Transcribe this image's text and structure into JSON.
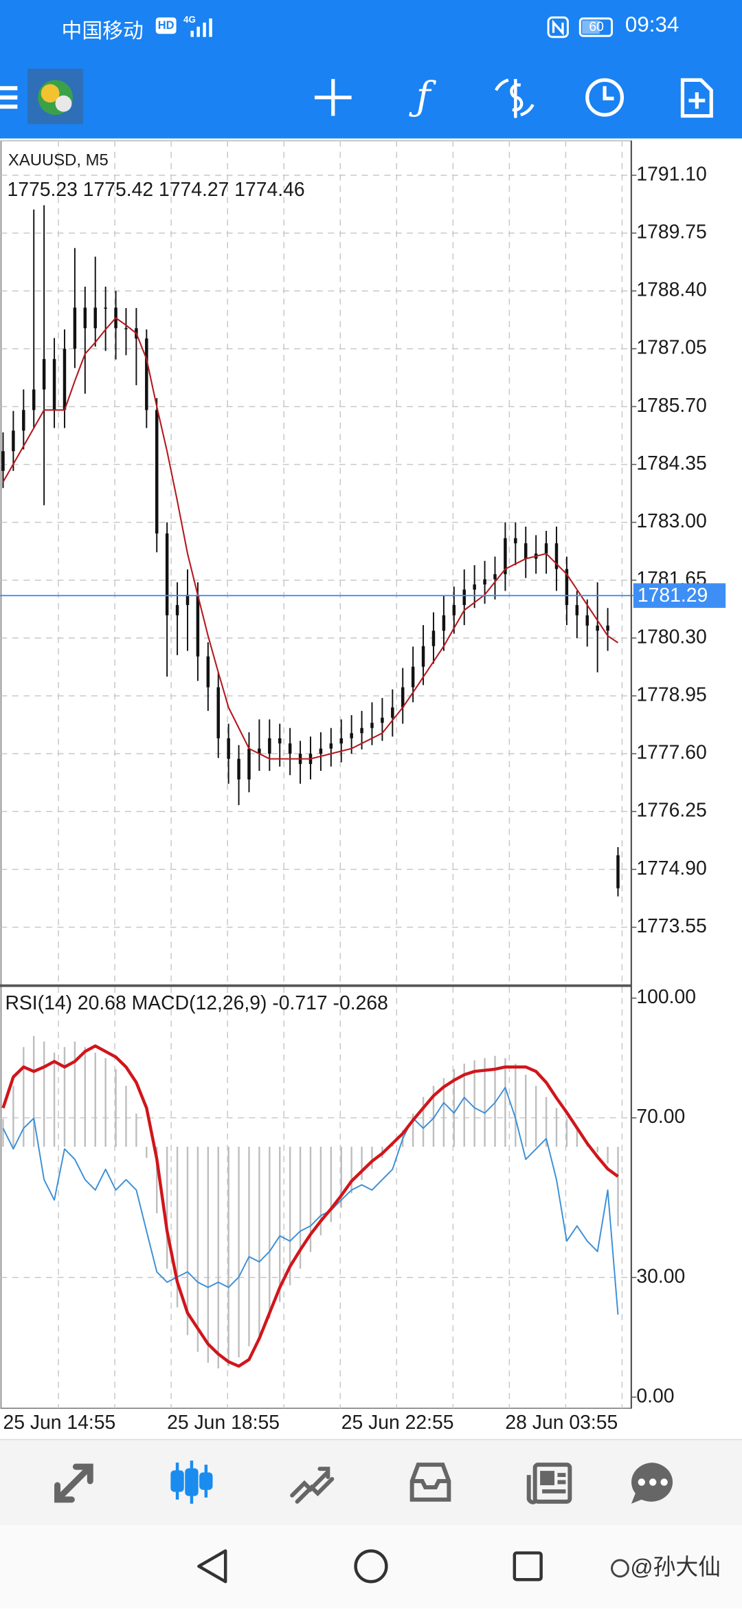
{
  "status_bar": {
    "carrier": "中国移动",
    "hd": "HD",
    "network": "4G",
    "battery": "60",
    "time": "09:34"
  },
  "chart_data": [
    {
      "type": "candlestick",
      "title": "XAUUSD, M5",
      "subtitle": "1775.23 1775.42 1774.27 1774.46",
      "categories": [
        "25 Jun 14:55",
        null,
        null,
        null,
        null,
        null,
        null,
        null,
        null,
        null,
        null,
        null,
        null,
        null,
        null,
        null,
        "25 Jun 18:55",
        null,
        null,
        null,
        null,
        null,
        null,
        null,
        null,
        null,
        null,
        null,
        null,
        null,
        null,
        null,
        null,
        "25 Jun 22:55",
        null,
        null,
        null,
        null,
        null,
        null,
        null,
        null,
        null,
        null,
        null,
        null,
        null,
        null,
        null,
        "28 Jun 03:55",
        null,
        null,
        null,
        null,
        null,
        null,
        null,
        null,
        null,
        null,
        null
      ],
      "open": [
        1784.2,
        1784.66,
        1785.14,
        1785.62,
        1786.1,
        1786.81,
        1785.62,
        1787.05,
        1788.01,
        1787.53,
        1788.01,
        1788.01,
        1787.53,
        1787.53,
        1787.29,
        1785.62,
        1782.74,
        1780.83,
        1781.07,
        1781.31,
        1779.87,
        1779.15,
        1777.96,
        1777.48,
        1777.0,
        1777.72,
        1777.6,
        1777.96,
        1777.84,
        1777.6,
        1777.36,
        1777.6,
        1777.72,
        1777.84,
        1777.96,
        1778.08,
        1778.2,
        1778.32,
        1778.44,
        1778.68,
        1779.15,
        1779.63,
        1780.11,
        1780.47,
        1780.83,
        1781.07,
        1781.43,
        1781.55,
        1781.67,
        1781.79,
        1782.63,
        1782.51,
        1782.15,
        1782.27,
        1782.51,
        1781.91,
        1781.07,
        1780.83,
        1780.59,
        1780.47,
        1775.23
      ],
      "high": [
        1785.1,
        1785.6,
        1786.1,
        1790.3,
        1790.4,
        1787.3,
        1787.5,
        1789.4,
        1788.5,
        1789.2,
        1788.5,
        1788.4,
        1788.0,
        1788.0,
        1787.5,
        1785.9,
        1783.0,
        1781.6,
        1781.9,
        1781.6,
        1780.2,
        1779.5,
        1778.3,
        1777.8,
        1778.1,
        1778.4,
        1778.4,
        1778.3,
        1778.2,
        1777.9,
        1778.0,
        1778.1,
        1778.2,
        1778.4,
        1778.5,
        1778.6,
        1778.8,
        1778.9,
        1779.1,
        1779.6,
        1780.1,
        1780.6,
        1780.9,
        1781.3,
        1781.5,
        1781.9,
        1782.0,
        1782.1,
        1782.2,
        1783.0,
        1783.0,
        1782.9,
        1782.7,
        1782.8,
        1782.9,
        1782.2,
        1781.4,
        1781.2,
        1781.6,
        1781.0,
        1775.42
      ],
      "low": [
        1783.8,
        1784.2,
        1784.7,
        1785.2,
        1783.4,
        1785.2,
        1785.2,
        1786.6,
        1786.0,
        1787.1,
        1787.0,
        1786.8,
        1786.9,
        1786.2,
        1785.2,
        1782.3,
        1779.4,
        1779.9,
        1780.0,
        1779.3,
        1778.6,
        1777.5,
        1776.9,
        1776.4,
        1776.7,
        1777.2,
        1777.2,
        1777.3,
        1777.1,
        1776.9,
        1777.0,
        1777.2,
        1777.3,
        1777.4,
        1777.6,
        1777.7,
        1777.8,
        1777.9,
        1778.0,
        1778.3,
        1778.8,
        1779.2,
        1779.7,
        1780.0,
        1780.4,
        1780.6,
        1781.0,
        1781.1,
        1781.2,
        1781.4,
        1782.0,
        1781.7,
        1781.8,
        1781.8,
        1781.4,
        1780.6,
        1780.3,
        1780.1,
        1779.5,
        1780.0,
        1774.27
      ],
      "close": [
        1784.66,
        1785.14,
        1785.62,
        1786.1,
        1786.81,
        1785.62,
        1787.05,
        1788.01,
        1787.53,
        1788.01,
        1788.01,
        1787.53,
        1787.53,
        1787.29,
        1785.62,
        1782.74,
        1780.83,
        1781.07,
        1781.31,
        1779.87,
        1779.15,
        1777.96,
        1777.48,
        1777.0,
        1777.72,
        1777.6,
        1777.96,
        1777.84,
        1777.6,
        1777.36,
        1777.6,
        1777.72,
        1777.84,
        1777.96,
        1778.08,
        1778.2,
        1778.32,
        1778.44,
        1778.68,
        1779.15,
        1779.63,
        1780.11,
        1780.47,
        1780.83,
        1781.07,
        1781.43,
        1781.55,
        1781.67,
        1781.79,
        1782.63,
        1782.51,
        1782.15,
        1782.27,
        1782.51,
        1781.91,
        1781.07,
        1780.83,
        1780.59,
        1780.47,
        1780.59,
        1774.46
      ],
      "candle_color": "#111111",
      "series": [
        {
          "color": "#b3191f",
          "values": [
            1783.94,
            1784.36,
            1784.78,
            1785.2,
            1785.62,
            1785.62,
            1785.62,
            1786.3,
            1786.93,
            1787.2,
            1787.5,
            1787.77,
            1787.6,
            1787.41,
            1786.81,
            1785.7,
            1784.66,
            1783.5,
            1782.27,
            1781.3,
            1780.35,
            1779.5,
            1778.68,
            1778.2,
            1777.72,
            1777.6,
            1777.48,
            1777.48,
            1777.48,
            1777.48,
            1777.48,
            1777.54,
            1777.6,
            1777.66,
            1777.72,
            1777.84,
            1777.96,
            1778.08,
            1778.38,
            1778.68,
            1779.03,
            1779.39,
            1779.75,
            1780.11,
            1780.53,
            1780.95,
            1781.13,
            1781.31,
            1781.61,
            1781.91,
            1782.03,
            1782.15,
            1782.21,
            1782.27,
            1782.03,
            1781.79,
            1781.43,
            1781.07,
            1780.71,
            1780.35,
            1780.19
          ]
        }
      ],
      "bid_line": 1781.29,
      "bid_color": "#3d8ff5",
      "ylim": [
        1772.21,
        1791.91
      ],
      "yticks": [
        {
          "value": 1791.1,
          "label": "1791.10"
        },
        {
          "value": 1789.75,
          "label": "1789.75"
        },
        {
          "value": 1788.4,
          "label": "1788.40"
        },
        {
          "value": 1787.05,
          "label": "1787.05"
        },
        {
          "value": 1785.7,
          "label": "1785.70"
        },
        {
          "value": 1784.35,
          "label": "1784.35"
        },
        {
          "value": 1783.0,
          "label": "1783.00"
        },
        {
          "value": 1781.65,
          "label": "1781.65"
        },
        {
          "value": 1780.3,
          "label": "1780.30"
        },
        {
          "value": 1778.95,
          "label": "1778.95"
        },
        {
          "value": 1777.6,
          "label": "1777.60"
        },
        {
          "value": 1776.25,
          "label": "1776.25"
        },
        {
          "value": 1774.9,
          "label": "1774.90"
        },
        {
          "value": 1773.55,
          "label": "1773.55"
        }
      ],
      "grid": true
    },
    {
      "type": "line",
      "title": "RSI(14) 20.68 MACD(12,26,9) -0.717 -0.268",
      "series": [
        {
          "type": "bar",
          "axis": "y2",
          "color": "#bdbdbd",
          "values": [
            0.25,
            0.55,
            0.9,
            1.0,
            0.95,
            0.85,
            0.9,
            0.95,
            0.9,
            0.85,
            0.8,
            0.7,
            0.55,
            0.3,
            -0.1,
            -0.6,
            -1.1,
            -1.45,
            -1.7,
            -1.85,
            -1.95,
            -2.0,
            -1.98,
            -1.9,
            -1.8,
            -1.7,
            -1.55,
            -1.4,
            -1.25,
            -1.1,
            -0.95,
            -0.8,
            -0.68,
            -0.55,
            -0.42,
            -0.3,
            -0.2,
            -0.1,
            0.02,
            0.15,
            0.3,
            0.45,
            0.55,
            0.62,
            0.7,
            0.75,
            0.78,
            0.8,
            0.82,
            0.8,
            0.75,
            0.65,
            0.55,
            0.45,
            0.35,
            0.25,
            0.15,
            0.05,
            -0.05,
            -0.15,
            -0.717
          ]
        },
        {
          "type": "line",
          "color": "#3a8fd6",
          "width": 1.3,
          "values": [
            67.4,
            62.2,
            67.4,
            69.9,
            54.5,
            49.4,
            62.2,
            59.6,
            54.5,
            51.9,
            57.1,
            51.9,
            54.5,
            51.9,
            41.6,
            31.4,
            28.8,
            30.1,
            31.4,
            28.8,
            27.5,
            28.8,
            27.5,
            30.1,
            35.2,
            33.9,
            36.5,
            40.4,
            39.1,
            41.6,
            42.9,
            45.5,
            46.8,
            49.4,
            51.9,
            53.2,
            51.9,
            54.5,
            57.1,
            64.8,
            69.9,
            67.4,
            69.9,
            73.8,
            71.2,
            75.1,
            72.5,
            71.2,
            73.8,
            77.6,
            69.9,
            59.6,
            62.2,
            64.8,
            54.5,
            39.1,
            42.9,
            39.1,
            36.5,
            51.9,
            20.68
          ]
        },
        {
          "type": "line",
          "axis": "y2",
          "color": "#d0161b",
          "width": 3,
          "values": [
            0.35,
            0.63,
            0.72,
            0.68,
            0.72,
            0.77,
            0.72,
            0.77,
            0.86,
            0.91,
            0.86,
            0.81,
            0.72,
            0.58,
            0.35,
            -0.11,
            -0.76,
            -1.22,
            -1.5,
            -1.64,
            -1.78,
            -1.87,
            -1.94,
            -1.98,
            -1.92,
            -1.73,
            -1.5,
            -1.27,
            -1.08,
            -0.93,
            -0.79,
            -0.67,
            -0.56,
            -0.44,
            -0.31,
            -0.22,
            -0.13,
            -0.06,
            0.03,
            0.12,
            0.24,
            0.35,
            0.46,
            0.54,
            0.6,
            0.65,
            0.68,
            0.69,
            0.7,
            0.72,
            0.72,
            0.72,
            0.68,
            0.58,
            0.44,
            0.31,
            0.17,
            0.03,
            -0.09,
            -0.2,
            -0.268
          ]
        }
      ],
      "ylim": [
        -2.8,
        102.6
      ],
      "yticks": [
        {
          "value": 100,
          "label": "100.00"
        },
        {
          "value": 70,
          "label": "70.00"
        },
        {
          "value": 30,
          "label": "30.00"
        },
        {
          "value": 0,
          "label": "0.00"
        }
      ],
      "y2lim": [
        -2.36,
        1.435
      ],
      "grid": true
    }
  ],
  "watermark": "@孙大仙"
}
